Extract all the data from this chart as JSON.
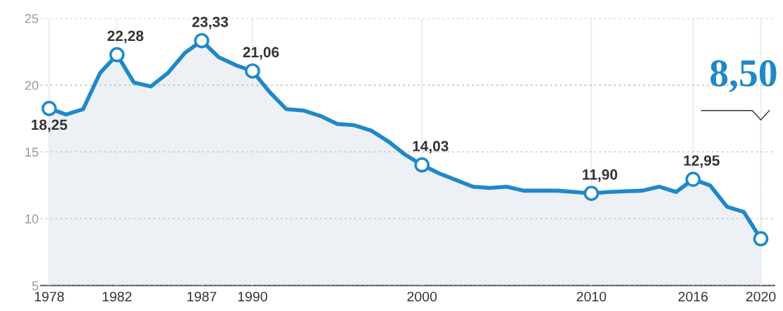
{
  "chart_data": {
    "type": "area",
    "x": [
      1978,
      1979,
      1980,
      1981,
      1982,
      1983,
      1984,
      1985,
      1986,
      1987,
      1988,
      1989,
      1990,
      1991,
      1992,
      1993,
      1994,
      1995,
      1996,
      1997,
      1998,
      1999,
      2000,
      2001,
      2002,
      2003,
      2004,
      2005,
      2006,
      2007,
      2008,
      2009,
      2010,
      2011,
      2012,
      2013,
      2014,
      2015,
      2016,
      2017,
      2018,
      2019,
      2020
    ],
    "series": [
      {
        "color": "#1f88c9",
        "values": [
          18.25,
          17.8,
          18.2,
          20.9,
          22.28,
          20.2,
          19.9,
          20.9,
          22.4,
          23.33,
          22.1,
          21.5,
          21.06,
          19.5,
          18.2,
          18.1,
          17.7,
          17.1,
          17.0,
          16.6,
          15.8,
          14.8,
          14.03,
          13.4,
          12.9,
          12.4,
          12.3,
          12.4,
          12.1,
          12.1,
          12.1,
          12.0,
          11.9,
          12.0,
          12.05,
          12.1,
          12.4,
          12.0,
          12.95,
          12.5,
          10.9,
          10.5,
          8.5
        ],
        "value_labels": [
          "18,25",
          null,
          null,
          null,
          "22,28",
          null,
          null,
          null,
          null,
          "23,33",
          null,
          null,
          "21,06",
          null,
          null,
          null,
          null,
          null,
          null,
          null,
          null,
          null,
          "14,03",
          null,
          null,
          null,
          null,
          null,
          null,
          null,
          null,
          null,
          "11,90",
          null,
          null,
          null,
          null,
          null,
          "12,95",
          null,
          null,
          null,
          "8,50"
        ]
      }
    ],
    "xlim": [
      1977.5,
      2020.8
    ],
    "xticks": [
      1978,
      1982,
      1987,
      1990,
      2000,
      2010,
      2016,
      2020
    ],
    "ylim": [
      5,
      25
    ],
    "yticks": [
      5,
      10,
      15,
      20,
      25
    ],
    "grid": true,
    "line_style": "solid"
  }
}
